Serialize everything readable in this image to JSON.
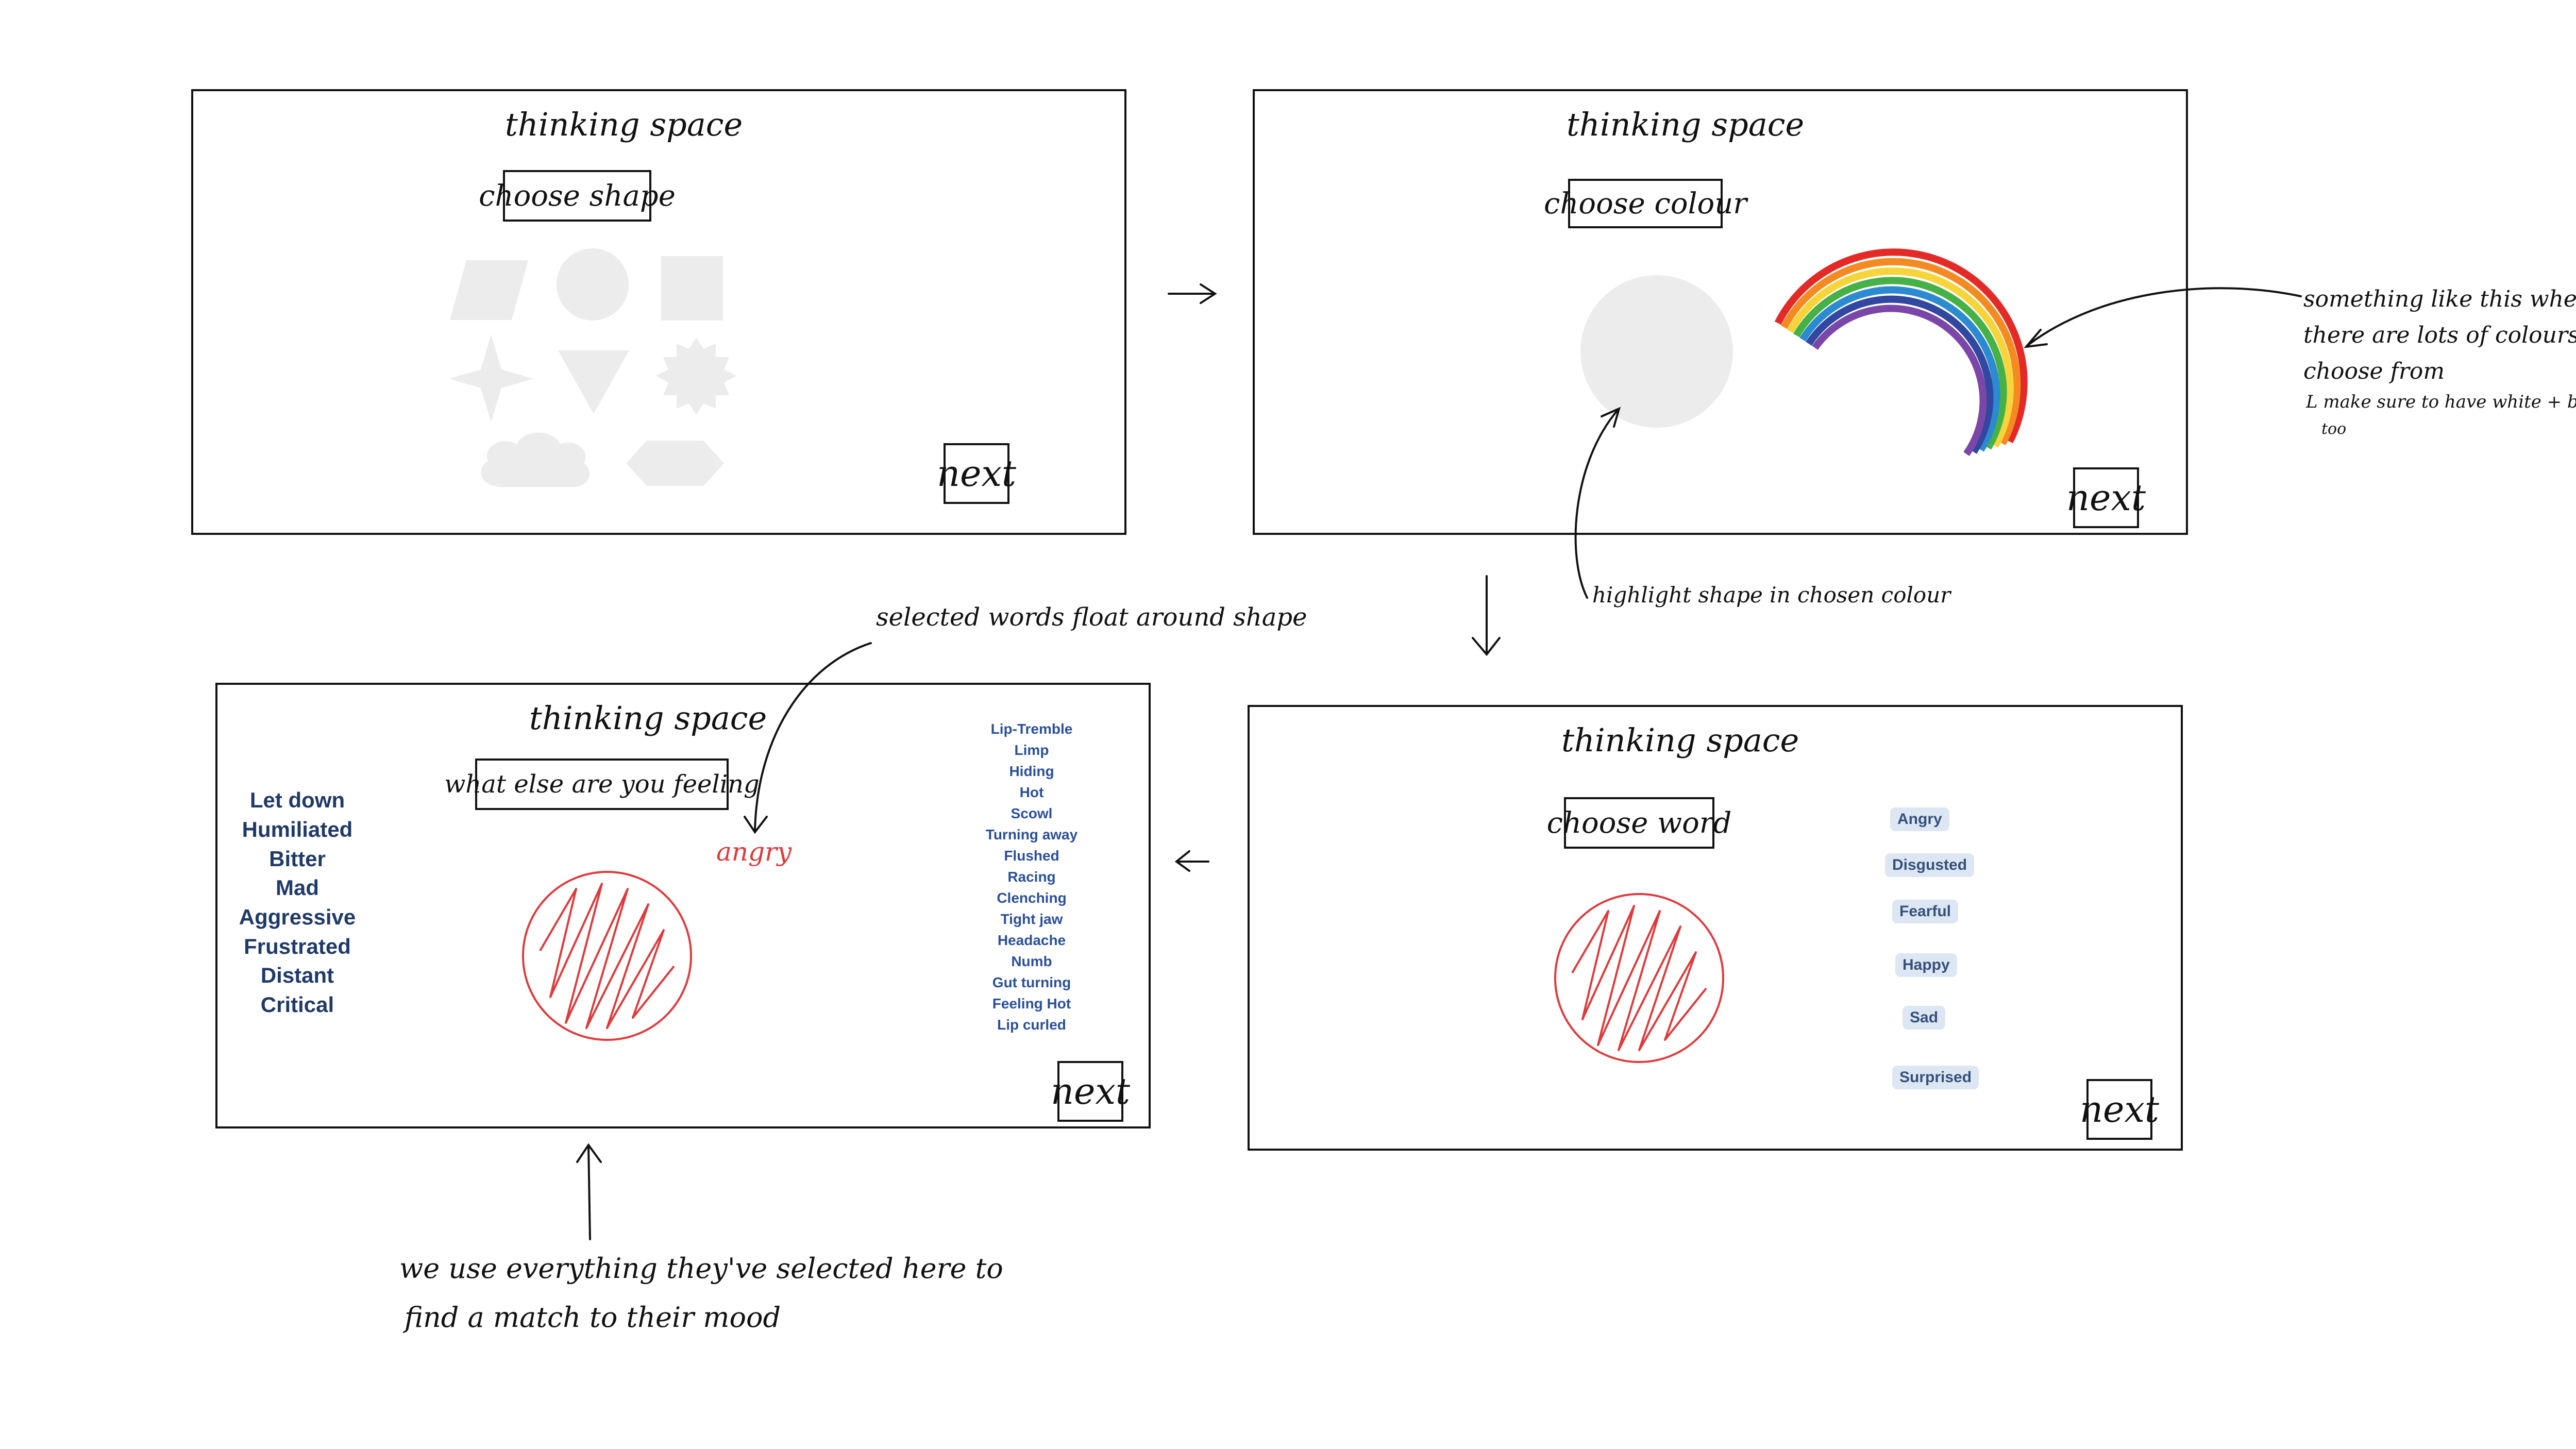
{
  "screens": {
    "shape": {
      "title": "thinking space",
      "instruction": "choose shape",
      "next_label": "next",
      "shape_icons": [
        "parallelogram-icon",
        "circle-icon",
        "square-icon",
        "star-icon",
        "triangle-icon",
        "badge-icon",
        "cloud-icon",
        "hexagon-icon"
      ]
    },
    "colour": {
      "title": "thinking space",
      "instruction": "choose colour",
      "next_label": "next"
    },
    "word": {
      "title": "thinking space",
      "instruction": "choose word",
      "next_label": "next",
      "words": [
        "Angry",
        "Disgusted",
        "Fearful",
        "Happy",
        "Sad",
        "Surprised"
      ]
    },
    "feeling": {
      "title": "thinking space",
      "instruction": "what else are you feeling",
      "next_label": "next",
      "selected_word": "angry",
      "left_words": [
        "Let down",
        "Humiliated",
        "Bitter",
        "Mad",
        "Aggressive",
        "Frustrated",
        "Distant",
        "Critical"
      ],
      "right_words": [
        "Lip-Tremble",
        "Limp",
        "Hiding",
        "Hot",
        "Scowl",
        "Turning away",
        "Flushed",
        "Racing",
        "Clenching",
        "Tight jaw",
        "Headache",
        "Numb",
        "Gut turning",
        "Feeling Hot",
        "Lip curled"
      ]
    }
  },
  "annotations": {
    "rainbow_note": [
      "something like this where",
      "there are lots of colours to",
      "choose from",
      "L make sure to have white + black",
      "too"
    ],
    "highlight_note": "highlight shape in chosen colour",
    "float_note": "selected words float around shape",
    "match_note": [
      "we use everything they've selected here to",
      "find a match to their mood"
    ]
  },
  "colors": {
    "ink": "#111111",
    "shape_grey": "#ececec",
    "scribble_red": "#e0393b",
    "word_navy": "#1f3a68",
    "word_blue": "#2a4f9c",
    "chip_bg": "#dde6f3"
  }
}
